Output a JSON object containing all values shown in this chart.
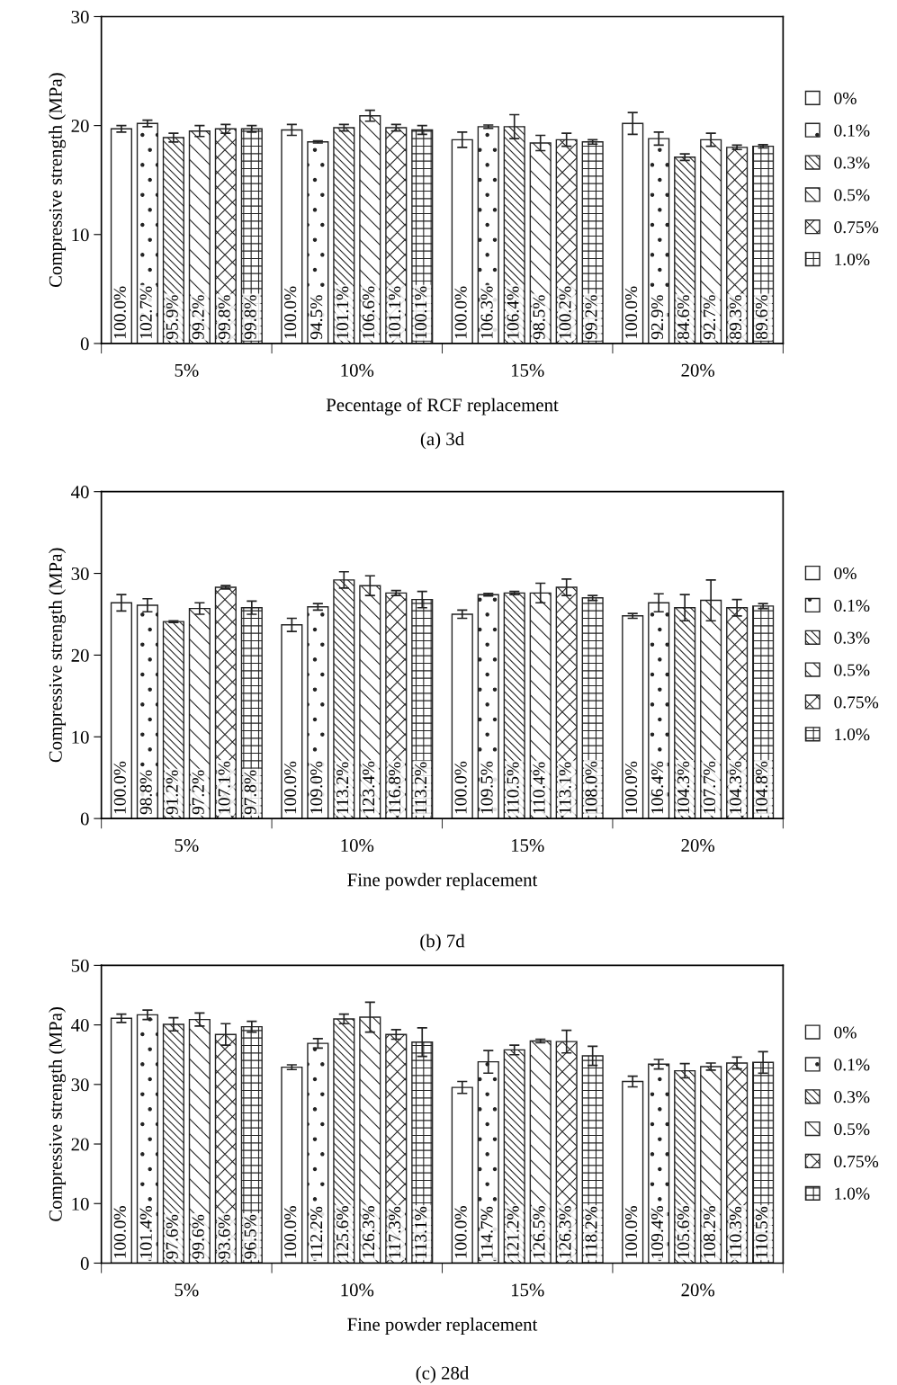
{
  "chart_data": [
    {
      "type": "bar",
      "title": "(a) 3d",
      "xlabel": "Pecentage of RCF replacement",
      "ylabel": "Compressive strength (MPa)",
      "categories": [
        "5%",
        "10%",
        "15%",
        "20%"
      ],
      "ylim": [
        0,
        30
      ],
      "yticks": [
        0,
        10,
        20,
        30
      ],
      "grid": false,
      "legend": "right",
      "series": [
        {
          "name": "0%",
          "color": "#ffffff",
          "values": [
            19.7,
            19.6,
            18.7,
            20.2
          ],
          "errors": [
            0.3,
            0.5,
            0.7,
            1.0
          ]
        },
        {
          "name": "0.1%",
          "color": "#222222",
          "values": [
            20.2,
            18.5,
            19.9,
            18.8
          ],
          "errors": [
            0.3,
            0.1,
            0.15,
            0.6
          ]
        },
        {
          "name": "0.3%",
          "color": "#222222",
          "values": [
            18.9,
            19.8,
            19.9,
            17.1
          ],
          "errors": [
            0.4,
            0.3,
            1.1,
            0.3
          ]
        },
        {
          "name": "0.5%",
          "color": "#222222",
          "values": [
            19.5,
            20.9,
            18.4,
            18.7
          ],
          "errors": [
            0.5,
            0.5,
            0.7,
            0.6
          ]
        },
        {
          "name": "0.75%",
          "color": "#222222",
          "values": [
            19.7,
            19.8,
            18.7,
            18.0
          ],
          "errors": [
            0.4,
            0.3,
            0.6,
            0.2
          ]
        },
        {
          "name": "1.0%",
          "color": "#222222",
          "values": [
            19.7,
            19.6,
            18.5,
            18.1
          ],
          "errors": [
            0.3,
            0.4,
            0.2,
            0.15
          ]
        }
      ],
      "annotations": [
        "100.0%",
        "102.7%",
        "95.9%",
        "99.2%",
        "99.8%",
        "99.8%",
        "100.0%",
        "94.5%",
        "101.1%",
        "106.6%",
        "101.1%",
        "100.1%",
        "100.0%",
        "106.3%",
        "106.4%",
        "98.5%",
        "100.2%",
        "99.2%",
        "100.0%",
        "92.9%",
        "84.6%",
        "92.7%",
        "89.3%",
        "89.6%"
      ]
    },
    {
      "type": "bar",
      "title": "(b) 7d",
      "xlabel": "Fine powder replacement",
      "ylabel": "Compressive strength (MPa)",
      "categories": [
        "5%",
        "10%",
        "15%",
        "20%"
      ],
      "ylim": [
        0,
        40
      ],
      "yticks": [
        0,
        10,
        20,
        30,
        40
      ],
      "grid": false,
      "legend": "right",
      "series": [
        {
          "name": "0%",
          "color": "#ffffff",
          "values": [
            26.4,
            23.7,
            25.0,
            24.8
          ],
          "errors": [
            1.0,
            0.8,
            0.5,
            0.3
          ]
        },
        {
          "name": "0.1%",
          "color": "#222222",
          "values": [
            26.1,
            25.9,
            27.4,
            26.4
          ],
          "errors": [
            0.8,
            0.4,
            0.15,
            1.1
          ]
        },
        {
          "name": "0.3%",
          "color": "#222222",
          "values": [
            24.1,
            29.2,
            27.6,
            25.8
          ],
          "errors": [
            0.1,
            1.0,
            0.2,
            1.6
          ]
        },
        {
          "name": "0.5%",
          "color": "#222222",
          "values": [
            25.7,
            28.5,
            27.6,
            26.7
          ],
          "errors": [
            0.7,
            1.2,
            1.2,
            2.5
          ]
        },
        {
          "name": "0.75%",
          "color": "#222222",
          "values": [
            28.3,
            27.6,
            28.3,
            25.8
          ],
          "errors": [
            0.2,
            0.3,
            1.0,
            1.0
          ]
        },
        {
          "name": "1.0%",
          "color": "#222222",
          "values": [
            25.8,
            26.8,
            27.0,
            26.0
          ],
          "errors": [
            0.8,
            1.0,
            0.3,
            0.3
          ]
        }
      ],
      "annotations": [
        "100.0%",
        "98.8%",
        "91.2%",
        "97.2%",
        "107.1%",
        "97.8%",
        "100.0%",
        "109.0%",
        "113.2%",
        "123.4%",
        "116.8%",
        "113.2%",
        "100.0%",
        "109.5%",
        "110.5%",
        "110.4%",
        "113.1%",
        "108.0%",
        "100.0%",
        "106.4%",
        "104.3%",
        "107.7%",
        "104.3%",
        "104.8%"
      ]
    },
    {
      "type": "bar",
      "title": "(c) 28d",
      "xlabel": "Fine powder replacement",
      "ylabel": "Compressive strength (MPa)",
      "categories": [
        "5%",
        "10%",
        "15%",
        "20%"
      ],
      "ylim": [
        0,
        50
      ],
      "yticks": [
        0,
        10,
        20,
        30,
        40,
        50
      ],
      "grid": false,
      "legend": "right",
      "series": [
        {
          "name": "0%",
          "color": "#ffffff",
          "values": [
            41.1,
            32.9,
            29.5,
            30.5
          ],
          "errors": [
            0.7,
            0.4,
            1.0,
            0.9
          ]
        },
        {
          "name": "0.1%",
          "color": "#222222",
          "values": [
            41.7,
            36.9,
            33.8,
            33.4
          ],
          "errors": [
            0.8,
            0.8,
            1.9,
            0.8
          ]
        },
        {
          "name": "0.3%",
          "color": "#222222",
          "values": [
            40.1,
            41.0,
            35.8,
            32.3
          ],
          "errors": [
            1.1,
            0.8,
            0.8,
            1.2
          ]
        },
        {
          "name": "0.5%",
          "color": "#222222",
          "values": [
            40.9,
            41.3,
            37.3,
            33.0
          ],
          "errors": [
            1.1,
            2.5,
            0.3,
            0.6
          ]
        },
        {
          "name": "0.75%",
          "color": "#222222",
          "values": [
            38.4,
            38.4,
            37.2,
            33.6
          ],
          "errors": [
            1.8,
            0.8,
            1.9,
            1.0
          ]
        },
        {
          "name": "1.0%",
          "color": "#222222",
          "values": [
            39.7,
            37.1,
            34.8,
            33.7
          ],
          "errors": [
            0.9,
            2.4,
            1.6,
            1.8
          ]
        }
      ],
      "annotations": [
        "100.0%",
        "101.4%",
        "97.6%",
        "99.6%",
        "93.6%",
        "96.5%",
        "100.0%",
        "112.2%",
        "125.6%",
        "126.3%",
        "117.3%",
        "113.1%",
        "100.0%",
        "114.7%",
        "121.2%",
        "126.5%",
        "126.3%",
        "118.2%",
        "100.0%",
        "109.4%",
        "105.6%",
        "108.2%",
        "110.3%",
        "110.5%"
      ]
    }
  ]
}
